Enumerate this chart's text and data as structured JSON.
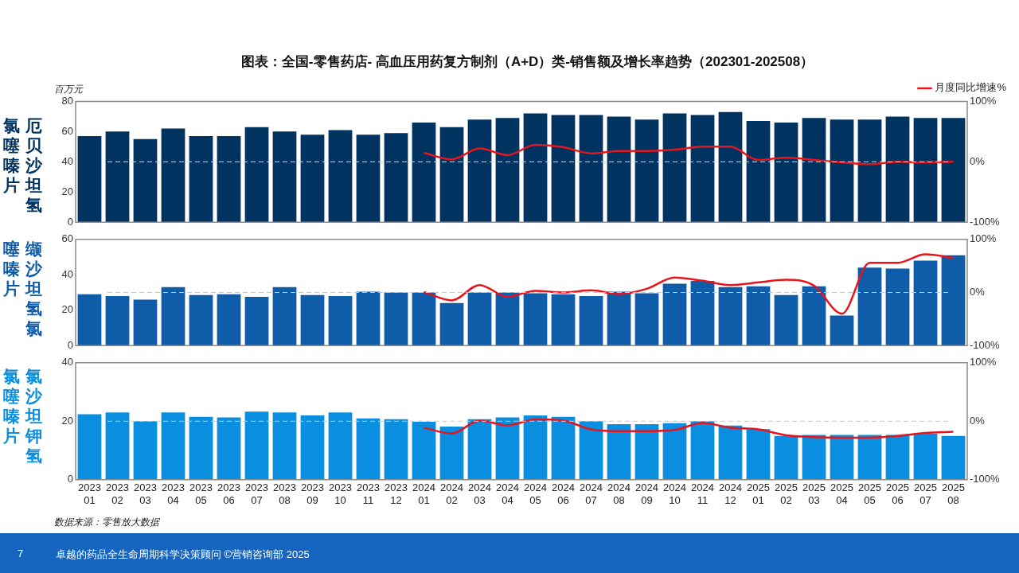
{
  "chart_data": [
    {
      "type": "bar",
      "title": "图表：全国-零售药店- 高血压用药复方制剂（A+D）类-销售额及增长率趋势（202301-202508）",
      "ylabel": "厄贝沙坦氢氯噻嗪片",
      "annotations": [
        "百万元"
      ],
      "categories": [
        "2023 01",
        "2023 02",
        "2023 03",
        "2023 04",
        "2023 05",
        "2023 06",
        "2023 07",
        "2023 08",
        "2023 09",
        "2023 10",
        "2023 11",
        "2023 12",
        "2024 01",
        "2024 02",
        "2024 03",
        "2024 04",
        "2024 05",
        "2024 06",
        "2024 07",
        "2024 08",
        "2024 09",
        "2024 10",
        "2024 11",
        "2024 12",
        "2025 01",
        "2025 02",
        "2025 03",
        "2025 04",
        "2025 05",
        "2025 06",
        "2025 07",
        "2025 08"
      ],
      "series": [
        {
          "color": "#003360",
          "values": [
            57,
            60,
            55,
            62,
            57,
            57,
            63,
            60,
            58,
            61,
            58,
            59,
            66,
            63,
            68,
            69,
            72,
            71,
            71,
            70,
            68,
            72,
            71,
            73,
            67,
            66,
            69,
            68,
            68,
            70,
            69,
            69
          ]
        },
        {
          "type": "line",
          "name": "月度同比增速%",
          "color": "#e8141b",
          "axis": "y2",
          "values": [
            null,
            null,
            null,
            null,
            null,
            null,
            null,
            null,
            null,
            null,
            null,
            null,
            15,
            4,
            22,
            11,
            28,
            24,
            14,
            18,
            18,
            20,
            25,
            25,
            3,
            7,
            3,
            -1,
            -4,
            0,
            -1,
            0
          ]
        }
      ],
      "ylim": [
        0,
        80
      ],
      "yticks": [
        0,
        20,
        40,
        60,
        80
      ],
      "y2lim": [
        -100,
        100
      ],
      "y2ticks": [
        {
          "value": -100,
          "label": "-100%"
        },
        {
          "value": 0,
          "label": "0%"
        },
        {
          "value": 100,
          "label": "100%"
        }
      ],
      "ref_lines": [
        {
          "axis": "y2",
          "value": 0,
          "color": "#d9d9d9",
          "line_style": "dashed"
        }
      ],
      "legend": "top right",
      "marker": "none",
      "tick_labels": "y",
      "grid": false
    },
    {
      "type": "bar",
      "ylabel": "缬沙坦氢氯噻嗪片",
      "categories": [
        "2023 01",
        "2023 02",
        "2023 03",
        "2023 04",
        "2023 05",
        "2023 06",
        "2023 07",
        "2023 08",
        "2023 09",
        "2023 10",
        "2023 11",
        "2023 12",
        "2024 01",
        "2024 02",
        "2024 03",
        "2024 04",
        "2024 05",
        "2024 06",
        "2024 07",
        "2024 08",
        "2024 09",
        "2024 10",
        "2024 11",
        "2024 12",
        "2025 01",
        "2025 02",
        "2025 03",
        "2025 04",
        "2025 05",
        "2025 06",
        "2025 07",
        "2025 08"
      ],
      "series": [
        {
          "color": "#0f5ca8",
          "values": [
            29,
            28,
            26,
            33,
            28.5,
            29,
            27.5,
            33,
            28.5,
            28,
            30.5,
            30,
            30,
            24,
            30,
            30,
            29.5,
            29,
            28,
            30.5,
            29.5,
            35,
            36.5,
            33,
            33.5,
            28.5,
            33.5,
            17,
            44,
            43.5,
            48,
            51
          ]
        },
        {
          "type": "line",
          "color": "#e8141b",
          "axis": "y2",
          "values": [
            null,
            null,
            null,
            null,
            null,
            null,
            null,
            null,
            null,
            null,
            null,
            null,
            1,
            -15,
            14,
            -8,
            3,
            0,
            4,
            -3,
            7,
            28,
            22,
            14,
            19,
            24,
            13,
            -40,
            56,
            56,
            72,
            65
          ]
        }
      ],
      "ylim": [
        0,
        60
      ],
      "yticks": [
        0,
        20,
        40,
        60
      ],
      "y2lim": [
        -100,
        100
      ],
      "y2ticks": [
        {
          "value": -100,
          "label": "-100%"
        },
        {
          "value": 0,
          "label": "0%"
        },
        {
          "value": 100,
          "label": "100%"
        }
      ],
      "ref_lines": [
        {
          "axis": "y2",
          "value": 0,
          "color": "#c8c8c8",
          "line_style": "dashed"
        }
      ],
      "marker": "none",
      "tick_labels": "y",
      "grid": false
    },
    {
      "type": "bar",
      "ylabel": "氯沙坦钾氢氯噻嗪片",
      "annotations": [
        "数据来源：零售放大数据",
        "7",
        "卓越的药品全生命周期科学决策顾问 ©营销咨询部 2025"
      ],
      "categories": [
        "2023 01",
        "2023 02",
        "2023 03",
        "2023 04",
        "2023 05",
        "2023 06",
        "2023 07",
        "2023 08",
        "2023 09",
        "2023 10",
        "2023 11",
        "2023 12",
        "2024 01",
        "2024 02",
        "2024 03",
        "2024 04",
        "2024 05",
        "2024 06",
        "2024 07",
        "2024 08",
        "2024 09",
        "2024 10",
        "2024 11",
        "2024 12",
        "2025 01",
        "2025 02",
        "2025 03",
        "2025 04",
        "2025 05",
        "2025 06",
        "2025 07",
        "2025 08"
      ],
      "series": [
        {
          "color": "#0a8fe0",
          "values": [
            22.4,
            23,
            20,
            23,
            21.5,
            21.3,
            23.3,
            23,
            22,
            23,
            21,
            20.7,
            19.8,
            18.2,
            20.7,
            21.3,
            22,
            21.5,
            20,
            19,
            19,
            19.3,
            20,
            18.5,
            17.3,
            15,
            15.3,
            15.3,
            15.3,
            15.3,
            15.7,
            15
          ]
        },
        {
          "type": "line",
          "color": "#e8141b",
          "axis": "y2",
          "values": [
            null,
            null,
            null,
            null,
            null,
            null,
            null,
            null,
            null,
            null,
            null,
            null,
            -11,
            -21,
            1,
            -7,
            3,
            1,
            -14,
            -17,
            -17,
            -15,
            -3,
            -11,
            -14,
            -24,
            -27,
            -28,
            -28,
            -25,
            -20,
            -18
          ]
        }
      ],
      "ylim": [
        0,
        40
      ],
      "yticks": [
        0,
        20,
        40
      ],
      "y2lim": [
        -100,
        100
      ],
      "y2ticks": [
        {
          "value": -100,
          "label": "-100%"
        },
        {
          "value": 0,
          "label": "0%"
        },
        {
          "value": 100,
          "label": "100%"
        }
      ],
      "ref_lines": [
        {
          "axis": "y2",
          "value": 0,
          "color": "#c8c8c8",
          "line_style": "dashed"
        }
      ],
      "marker": "none",
      "grid": false
    }
  ]
}
